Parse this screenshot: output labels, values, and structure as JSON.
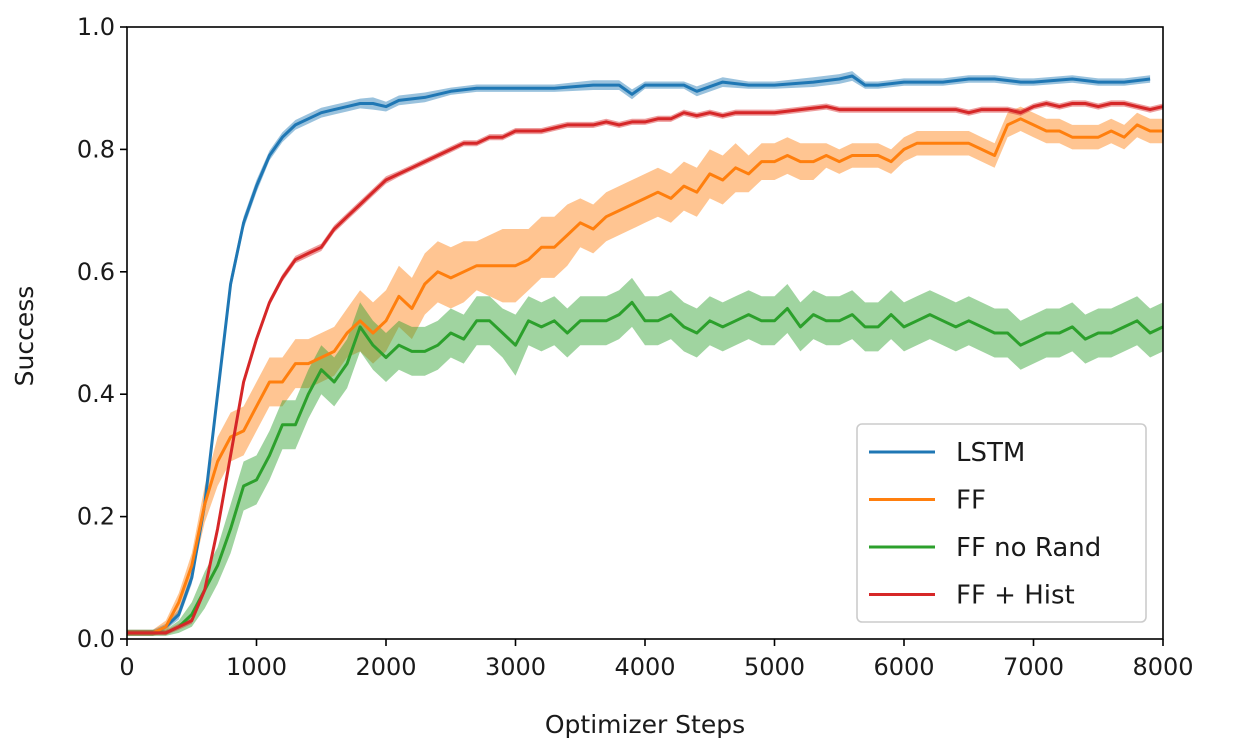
{
  "chart_data": {
    "type": "line",
    "title": "",
    "xlabel": "Optimizer Steps",
    "ylabel": "Success",
    "xlim": [
      0,
      8000
    ],
    "ylim": [
      0.0,
      1.0
    ],
    "xticks": [
      0,
      1000,
      2000,
      3000,
      4000,
      5000,
      6000,
      7000,
      8000
    ],
    "xtick_labels": [
      "0",
      "1000",
      "2000",
      "3000",
      "4000",
      "5000",
      "6000",
      "7000",
      "8000"
    ],
    "yticks": [
      0.0,
      0.2,
      0.4,
      0.6,
      0.8,
      1.0
    ],
    "ytick_labels": [
      "0.0",
      "0.2",
      "0.4",
      "0.6",
      "0.8",
      "1.0"
    ],
    "grid": false,
    "legend_position": "lower-right",
    "series": [
      {
        "name": "LSTM",
        "color": "#1f77b4",
        "x": [
          0,
          200,
          300,
          400,
          500,
          600,
          700,
          800,
          900,
          1000,
          1100,
          1200,
          1300,
          1400,
          1500,
          1600,
          1700,
          1800,
          1900,
          2000,
          2100,
          2300,
          2500,
          2700,
          3000,
          3300,
          3600,
          3800,
          3900,
          4000,
          4300,
          4400,
          4600,
          4800,
          5000,
          5300,
          5500,
          5600,
          5700,
          5800,
          6000,
          6300,
          6500,
          6700,
          6900,
          7000,
          7300,
          7500,
          7700,
          7900
        ],
        "y": [
          0.01,
          0.01,
          0.02,
          0.04,
          0.1,
          0.22,
          0.4,
          0.58,
          0.68,
          0.74,
          0.79,
          0.82,
          0.84,
          0.85,
          0.86,
          0.865,
          0.87,
          0.875,
          0.875,
          0.87,
          0.88,
          0.885,
          0.895,
          0.9,
          0.9,
          0.9,
          0.905,
          0.905,
          0.89,
          0.905,
          0.905,
          0.895,
          0.91,
          0.905,
          0.905,
          0.91,
          0.915,
          0.92,
          0.905,
          0.905,
          0.91,
          0.91,
          0.915,
          0.915,
          0.91,
          0.91,
          0.915,
          0.91,
          0.91,
          0.915
        ],
        "band": [
          0.005,
          0.005,
          0.005,
          0.008,
          0.01,
          0.012,
          0.012,
          0.012,
          0.01,
          0.01,
          0.008,
          0.008,
          0.008,
          0.008,
          0.008,
          0.008,
          0.008,
          0.008,
          0.01,
          0.008,
          0.008,
          0.008,
          0.006,
          0.006,
          0.006,
          0.006,
          0.008,
          0.008,
          0.008,
          0.006,
          0.006,
          0.008,
          0.008,
          0.006,
          0.006,
          0.008,
          0.008,
          0.008,
          0.006,
          0.006,
          0.006,
          0.006,
          0.006,
          0.006,
          0.006,
          0.006,
          0.006,
          0.006,
          0.006,
          0.006
        ]
      },
      {
        "name": "FF",
        "color": "#ff7f0e",
        "x": [
          0,
          200,
          300,
          400,
          500,
          600,
          700,
          800,
          900,
          1000,
          1100,
          1200,
          1300,
          1400,
          1500,
          1600,
          1700,
          1800,
          1900,
          2000,
          2100,
          2200,
          2300,
          2400,
          2500,
          2600,
          2700,
          2800,
          2900,
          3000,
          3100,
          3200,
          3300,
          3400,
          3500,
          3600,
          3700,
          3800,
          3900,
          4000,
          4100,
          4200,
          4300,
          4400,
          4500,
          4600,
          4700,
          4800,
          4900,
          5000,
          5100,
          5200,
          5300,
          5400,
          5500,
          5600,
          5700,
          5800,
          5900,
          6000,
          6100,
          6200,
          6300,
          6400,
          6500,
          6600,
          6700,
          6800,
          6900,
          7000,
          7100,
          7200,
          7300,
          7400,
          7500,
          7600,
          7700,
          7800,
          7900,
          8000
        ],
        "y": [
          0.01,
          0.01,
          0.02,
          0.06,
          0.12,
          0.22,
          0.29,
          0.33,
          0.34,
          0.38,
          0.42,
          0.42,
          0.45,
          0.45,
          0.46,
          0.47,
          0.5,
          0.52,
          0.5,
          0.52,
          0.56,
          0.54,
          0.58,
          0.6,
          0.59,
          0.6,
          0.61,
          0.61,
          0.61,
          0.61,
          0.62,
          0.64,
          0.64,
          0.66,
          0.68,
          0.67,
          0.69,
          0.7,
          0.71,
          0.72,
          0.73,
          0.72,
          0.74,
          0.73,
          0.76,
          0.75,
          0.77,
          0.76,
          0.78,
          0.78,
          0.79,
          0.78,
          0.78,
          0.79,
          0.78,
          0.79,
          0.79,
          0.79,
          0.78,
          0.8,
          0.81,
          0.81,
          0.81,
          0.81,
          0.81,
          0.8,
          0.79,
          0.84,
          0.85,
          0.84,
          0.83,
          0.83,
          0.82,
          0.82,
          0.82,
          0.83,
          0.82,
          0.84,
          0.83,
          0.83
        ],
        "band": [
          0.005,
          0.005,
          0.01,
          0.015,
          0.02,
          0.03,
          0.04,
          0.04,
          0.04,
          0.04,
          0.04,
          0.04,
          0.04,
          0.04,
          0.04,
          0.04,
          0.04,
          0.05,
          0.05,
          0.05,
          0.05,
          0.05,
          0.05,
          0.05,
          0.05,
          0.05,
          0.04,
          0.05,
          0.06,
          0.06,
          0.05,
          0.05,
          0.05,
          0.05,
          0.04,
          0.04,
          0.04,
          0.04,
          0.04,
          0.04,
          0.04,
          0.04,
          0.04,
          0.04,
          0.04,
          0.04,
          0.04,
          0.03,
          0.03,
          0.03,
          0.03,
          0.03,
          0.03,
          0.02,
          0.02,
          0.02,
          0.02,
          0.02,
          0.02,
          0.02,
          0.02,
          0.02,
          0.02,
          0.02,
          0.02,
          0.02,
          0.02,
          0.02,
          0.02,
          0.02,
          0.02,
          0.02,
          0.02,
          0.02,
          0.02,
          0.02,
          0.02,
          0.02,
          0.02,
          0.02
        ]
      },
      {
        "name": "FF no Rand",
        "color": "#2ca02c",
        "x": [
          0,
          200,
          300,
          400,
          500,
          600,
          700,
          800,
          900,
          1000,
          1100,
          1200,
          1300,
          1400,
          1500,
          1600,
          1700,
          1800,
          1900,
          2000,
          2100,
          2200,
          2300,
          2400,
          2500,
          2600,
          2700,
          2800,
          2900,
          3000,
          3100,
          3200,
          3300,
          3400,
          3500,
          3600,
          3700,
          3800,
          3900,
          4000,
          4100,
          4200,
          4300,
          4400,
          4500,
          4600,
          4700,
          4800,
          4900,
          5000,
          5100,
          5200,
          5300,
          5400,
          5500,
          5600,
          5700,
          5800,
          5900,
          6000,
          6100,
          6200,
          6300,
          6400,
          6500,
          6600,
          6700,
          6800,
          6900,
          7000,
          7100,
          7200,
          7300,
          7400,
          7500,
          7600,
          7700,
          7800,
          7900,
          8000
        ],
        "y": [
          0.01,
          0.01,
          0.01,
          0.02,
          0.04,
          0.08,
          0.12,
          0.18,
          0.25,
          0.26,
          0.3,
          0.35,
          0.35,
          0.4,
          0.44,
          0.42,
          0.45,
          0.51,
          0.48,
          0.46,
          0.48,
          0.47,
          0.47,
          0.48,
          0.5,
          0.49,
          0.52,
          0.52,
          0.5,
          0.48,
          0.52,
          0.51,
          0.52,
          0.5,
          0.52,
          0.52,
          0.52,
          0.53,
          0.55,
          0.52,
          0.52,
          0.53,
          0.51,
          0.5,
          0.52,
          0.51,
          0.52,
          0.53,
          0.52,
          0.52,
          0.54,
          0.51,
          0.53,
          0.52,
          0.52,
          0.53,
          0.51,
          0.51,
          0.53,
          0.51,
          0.52,
          0.53,
          0.52,
          0.51,
          0.52,
          0.51,
          0.5,
          0.5,
          0.48,
          0.49,
          0.5,
          0.5,
          0.51,
          0.49,
          0.5,
          0.5,
          0.51,
          0.52,
          0.5,
          0.51
        ],
        "band": [
          0.005,
          0.005,
          0.005,
          0.01,
          0.02,
          0.03,
          0.03,
          0.04,
          0.04,
          0.04,
          0.04,
          0.04,
          0.04,
          0.04,
          0.04,
          0.04,
          0.04,
          0.04,
          0.04,
          0.04,
          0.04,
          0.04,
          0.04,
          0.04,
          0.04,
          0.04,
          0.04,
          0.04,
          0.04,
          0.05,
          0.04,
          0.04,
          0.04,
          0.04,
          0.04,
          0.04,
          0.04,
          0.04,
          0.04,
          0.04,
          0.04,
          0.04,
          0.04,
          0.04,
          0.04,
          0.04,
          0.04,
          0.04,
          0.04,
          0.04,
          0.04,
          0.04,
          0.04,
          0.04,
          0.04,
          0.04,
          0.04,
          0.04,
          0.04,
          0.04,
          0.04,
          0.04,
          0.04,
          0.04,
          0.04,
          0.04,
          0.04,
          0.04,
          0.04,
          0.04,
          0.04,
          0.04,
          0.04,
          0.04,
          0.04,
          0.04,
          0.04,
          0.04,
          0.04,
          0.04
        ]
      },
      {
        "name": "FF + Hist",
        "color": "#d62728",
        "x": [
          0,
          200,
          300,
          400,
          500,
          600,
          700,
          800,
          900,
          1000,
          1100,
          1200,
          1300,
          1400,
          1500,
          1600,
          1700,
          1800,
          1900,
          2000,
          2100,
          2200,
          2300,
          2400,
          2500,
          2600,
          2700,
          2800,
          2900,
          3000,
          3100,
          3200,
          3300,
          3400,
          3500,
          3600,
          3700,
          3800,
          3900,
          4000,
          4100,
          4200,
          4300,
          4400,
          4500,
          4600,
          4700,
          4800,
          4900,
          5000,
          5200,
          5400,
          5500,
          5600,
          5800,
          6000,
          6200,
          6400,
          6500,
          6600,
          6700,
          6800,
          6900,
          7000,
          7100,
          7200,
          7300,
          7400,
          7500,
          7600,
          7700,
          7800,
          7900,
          8000
        ],
        "y": [
          0.01,
          0.01,
          0.01,
          0.02,
          0.03,
          0.08,
          0.18,
          0.3,
          0.42,
          0.49,
          0.55,
          0.59,
          0.62,
          0.63,
          0.64,
          0.67,
          0.69,
          0.71,
          0.73,
          0.75,
          0.76,
          0.77,
          0.78,
          0.79,
          0.8,
          0.81,
          0.81,
          0.82,
          0.82,
          0.83,
          0.83,
          0.83,
          0.835,
          0.84,
          0.84,
          0.84,
          0.845,
          0.84,
          0.845,
          0.845,
          0.85,
          0.85,
          0.86,
          0.855,
          0.86,
          0.855,
          0.86,
          0.86,
          0.86,
          0.86,
          0.865,
          0.87,
          0.865,
          0.865,
          0.865,
          0.865,
          0.865,
          0.865,
          0.86,
          0.865,
          0.865,
          0.865,
          0.86,
          0.87,
          0.875,
          0.87,
          0.875,
          0.875,
          0.87,
          0.875,
          0.875,
          0.87,
          0.865,
          0.87
        ],
        "band": [
          0.004,
          0.004,
          0.004,
          0.005,
          0.005,
          0.006,
          0.006,
          0.006,
          0.006,
          0.006,
          0.006,
          0.006,
          0.006,
          0.006,
          0.006,
          0.006,
          0.006,
          0.006,
          0.006,
          0.006,
          0.005,
          0.005,
          0.005,
          0.005,
          0.005,
          0.005,
          0.005,
          0.005,
          0.005,
          0.005,
          0.005,
          0.005,
          0.005,
          0.005,
          0.005,
          0.005,
          0.005,
          0.005,
          0.005,
          0.005,
          0.005,
          0.005,
          0.005,
          0.005,
          0.005,
          0.005,
          0.005,
          0.005,
          0.005,
          0.005,
          0.005,
          0.005,
          0.005,
          0.005,
          0.005,
          0.005,
          0.005,
          0.005,
          0.005,
          0.005,
          0.005,
          0.005,
          0.005,
          0.005,
          0.005,
          0.005,
          0.005,
          0.005,
          0.005,
          0.005,
          0.005,
          0.005,
          0.005,
          0.005
        ]
      }
    ]
  }
}
